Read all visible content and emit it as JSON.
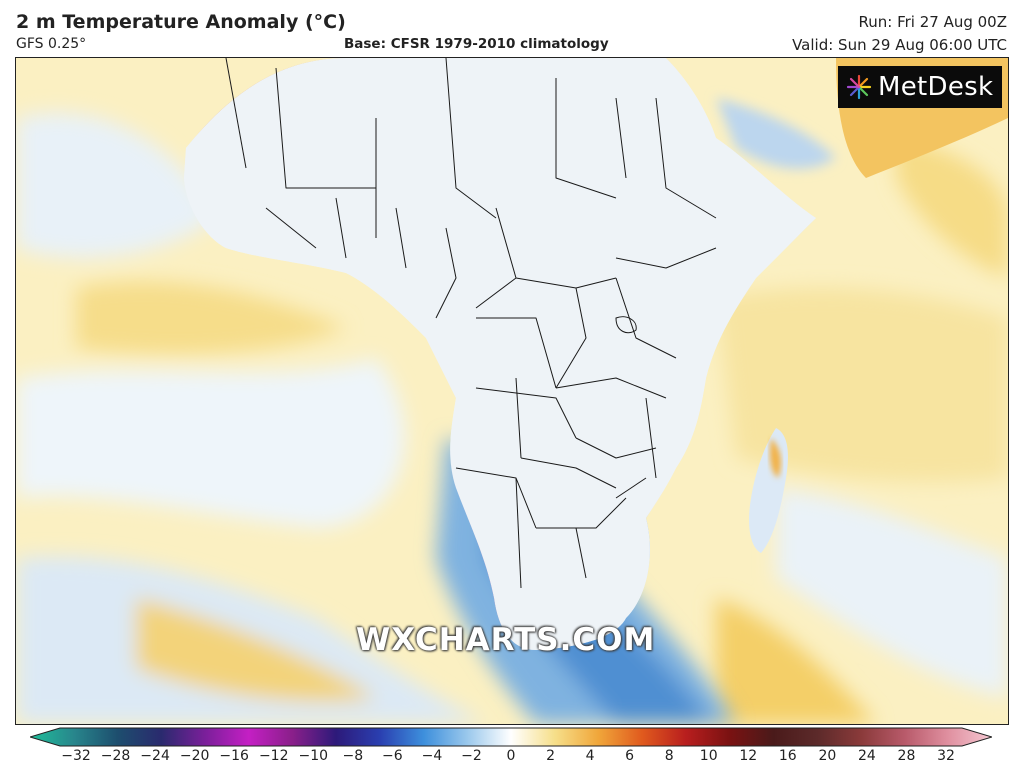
{
  "header": {
    "title": "2 m Temperature Anomaly (°C)",
    "model": "GFS 0.25°",
    "base": "Base: CFSR 1979-2010 climatology",
    "run": "Run: Fri 27 Aug 00Z",
    "valid": "Valid: Sun 29 Aug 06:00 UTC"
  },
  "logo": {
    "text": "MetDesk"
  },
  "watermark": {
    "text": "WXCHARTS.COM"
  },
  "colorbar": {
    "ticks": [
      "−32",
      "−28",
      "−24",
      "−20",
      "−16",
      "−12",
      "−10",
      "−8",
      "−6",
      "−4",
      "−2",
      "0",
      "2",
      "4",
      "6",
      "8",
      "10",
      "12",
      "16",
      "20",
      "24",
      "28",
      "32"
    ],
    "colors": [
      "#1fbf9a",
      "#28868c",
      "#1d4e6e",
      "#2a2a6e",
      "#7a1f9a",
      "#c41fc4",
      "#8a1f8a",
      "#2d1a7a",
      "#2a3fb0",
      "#3d8fdc",
      "#9ac8ec",
      "#ffffff",
      "#f6df8a",
      "#f0a63a",
      "#e05a1e",
      "#b81e1e",
      "#7a1212",
      "#4a1a1a",
      "#5c2a2a",
      "#8a3a3a",
      "#b85a6a",
      "#e090a0",
      "#f5c8d2"
    ]
  },
  "map": {
    "region": "Africa"
  }
}
